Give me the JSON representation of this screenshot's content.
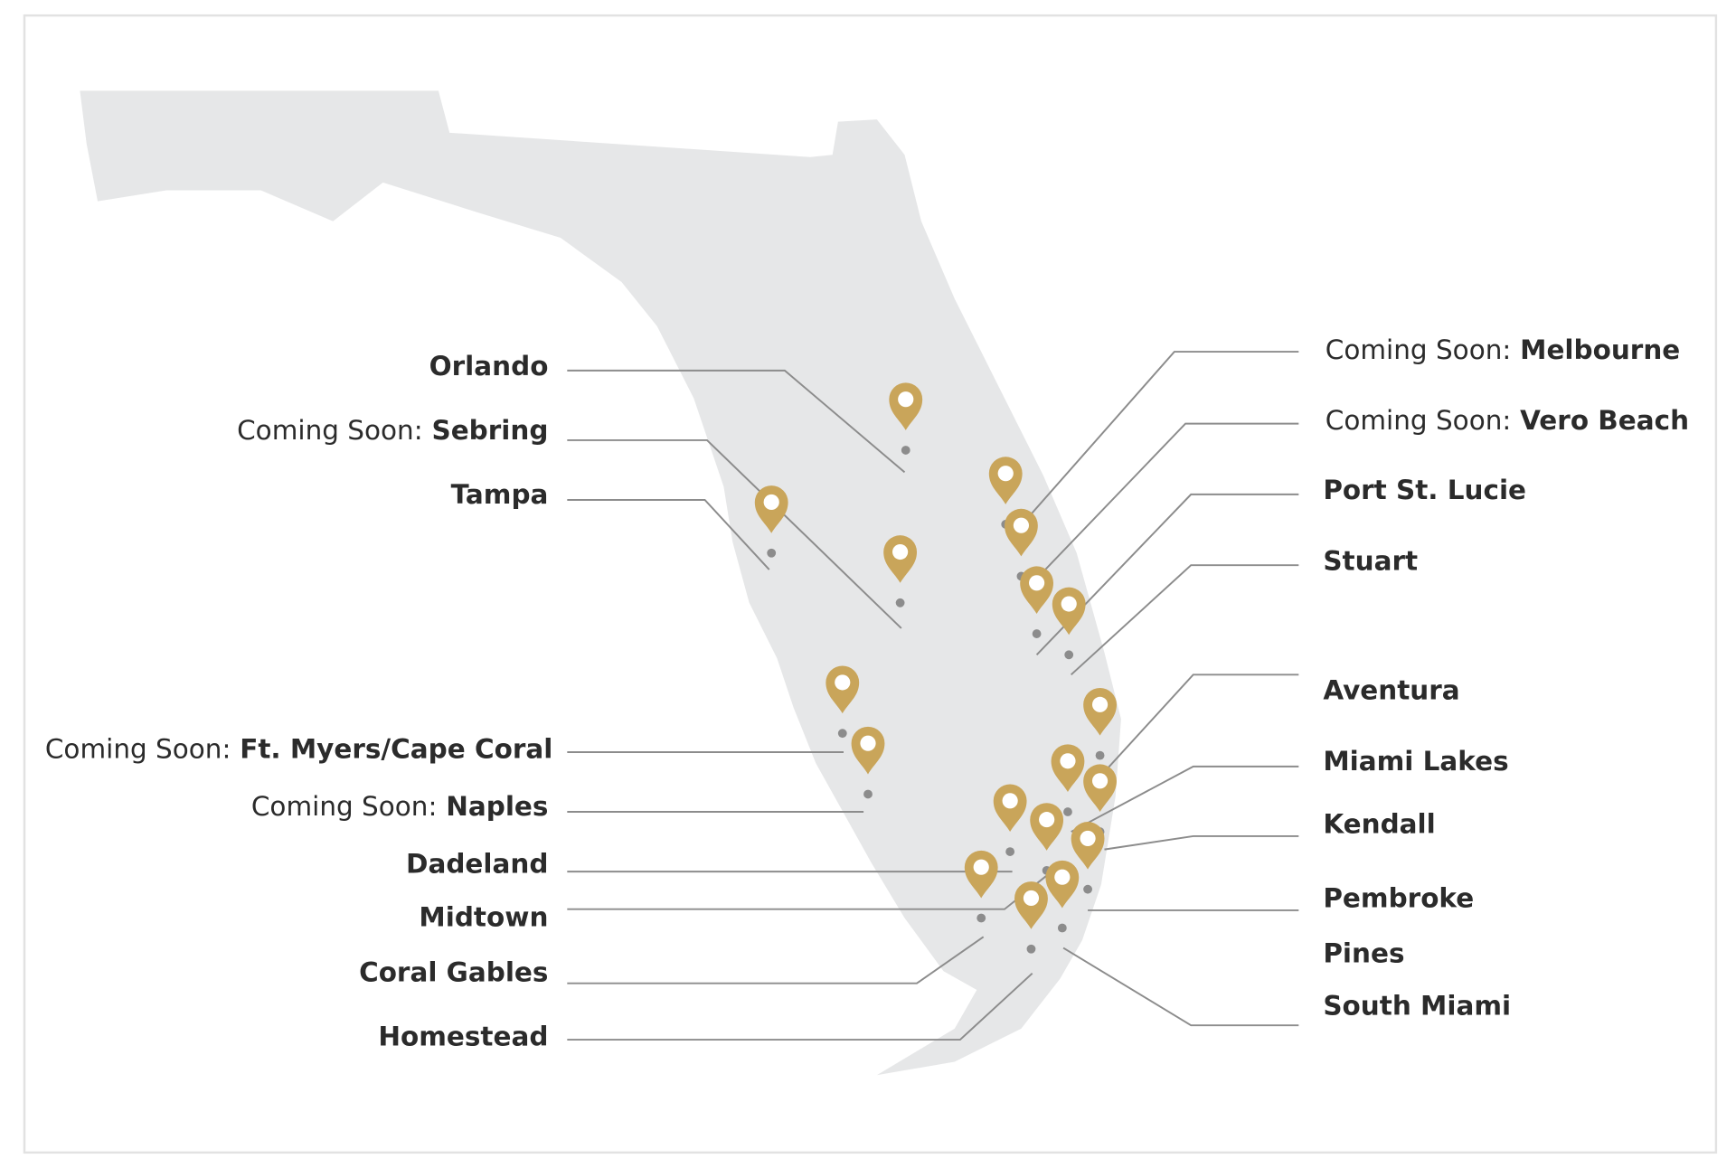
{
  "locations": [
    {
      "name": "Orlando"
    },
    {
      "status": "Coming Soon:",
      "name": "Sebring"
    },
    {
      "name": "Tampa"
    },
    {
      "status": "Coming Soon:",
      "name": "Ft. Myers/Cape Coral"
    },
    {
      "status": "Coming Soon:",
      "name": "Naples"
    },
    {
      "name": "Dadeland"
    },
    {
      "name": "Midtown"
    },
    {
      "name": "Coral Gables"
    },
    {
      "name": "Homestead"
    },
    {
      "status": "Coming Soon:",
      "name": "Melbourne"
    },
    {
      "status": "Coming Soon:",
      "name": "Vero Beach"
    },
    {
      "name": "Port St. Lucie"
    },
    {
      "name": "Stuart"
    },
    {
      "name": "Aventura"
    },
    {
      "name": "Miami Lakes"
    },
    {
      "name": "Kendall"
    },
    {
      "name": "Pembroke",
      "name_line2": "Pines"
    },
    {
      "name": "South Miami"
    }
  ]
}
